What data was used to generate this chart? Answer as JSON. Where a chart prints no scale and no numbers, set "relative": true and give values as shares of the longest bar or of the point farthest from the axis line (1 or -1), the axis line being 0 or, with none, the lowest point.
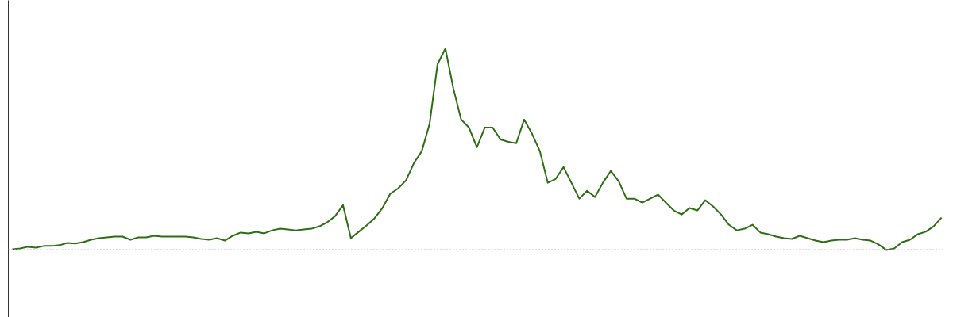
{
  "chart_data": {
    "type": "line",
    "relative": true,
    "categories": [
      null,
      null,
      null,
      null,
      null,
      null,
      null,
      null,
      null,
      null,
      null,
      null,
      null,
      null,
      null,
      null,
      null,
      null,
      null,
      null,
      null,
      null,
      null,
      null,
      null,
      null,
      null,
      null,
      null,
      null,
      null,
      null,
      null,
      null,
      null,
      null,
      null,
      null,
      null,
      null,
      null,
      null,
      null,
      null,
      null,
      null,
      null,
      null,
      null,
      null,
      null,
      null,
      null,
      null,
      null,
      null,
      null,
      null,
      null,
      null,
      null,
      null,
      null,
      null,
      null,
      null,
      null,
      null,
      null,
      null,
      null,
      null,
      null,
      null,
      null,
      null,
      null,
      null,
      null,
      null,
      null,
      null,
      null,
      null,
      null,
      null,
      null,
      null,
      null,
      null,
      null,
      null,
      null,
      null,
      null,
      null,
      null,
      null,
      null,
      null,
      null,
      null,
      null,
      null,
      null,
      null,
      null,
      null,
      null,
      null,
      null,
      null,
      null,
      null,
      null,
      null,
      null,
      null,
      null
    ],
    "series": [
      {
        "color": "#2d6e14",
        "values": [
          0,
          0.004,
          0.012,
          0.008,
          0.016,
          0.016,
          0.02,
          0.031,
          0.028,
          0.035,
          0.047,
          0.055,
          0.059,
          0.063,
          0.063,
          0.047,
          0.059,
          0.059,
          0.067,
          0.063,
          0.063,
          0.063,
          0.063,
          0.059,
          0.051,
          0.047,
          0.055,
          0.043,
          0.067,
          0.083,
          0.079,
          0.087,
          0.079,
          0.094,
          0.102,
          0.098,
          0.094,
          0.098,
          0.102,
          0.114,
          0.134,
          0.165,
          0.22,
          0.055,
          0.087,
          0.118,
          0.154,
          0.205,
          0.276,
          0.303,
          0.343,
          0.429,
          0.488,
          0.626,
          0.921,
          1,
          0.803,
          0.646,
          0.606,
          0.508,
          0.606,
          0.606,
          0.547,
          0.535,
          0.528,
          0.646,
          0.575,
          0.488,
          0.331,
          0.35,
          0.409,
          0.331,
          0.252,
          0.291,
          0.26,
          0.331,
          0.39,
          0.339,
          0.252,
          0.252,
          0.232,
          0.252,
          0.272,
          0.232,
          0.193,
          0.173,
          0.205,
          0.193,
          0.244,
          0.213,
          0.173,
          0.122,
          0.094,
          0.102,
          0.122,
          0.083,
          0.075,
          0.063,
          0.055,
          0.051,
          0.067,
          0.055,
          0.043,
          0.035,
          0.043,
          0.047,
          0.047,
          0.055,
          0.047,
          0.043,
          0.024,
          -0.004,
          0.004,
          0.035,
          0.047,
          0.075,
          0.087,
          0.114,
          0.157
        ]
      }
    ],
    "ref_lines": [
      {
        "axis": "y",
        "value": 0,
        "color": "#bbbbbb",
        "line_style": "dotted"
      }
    ],
    "grid": false
  }
}
